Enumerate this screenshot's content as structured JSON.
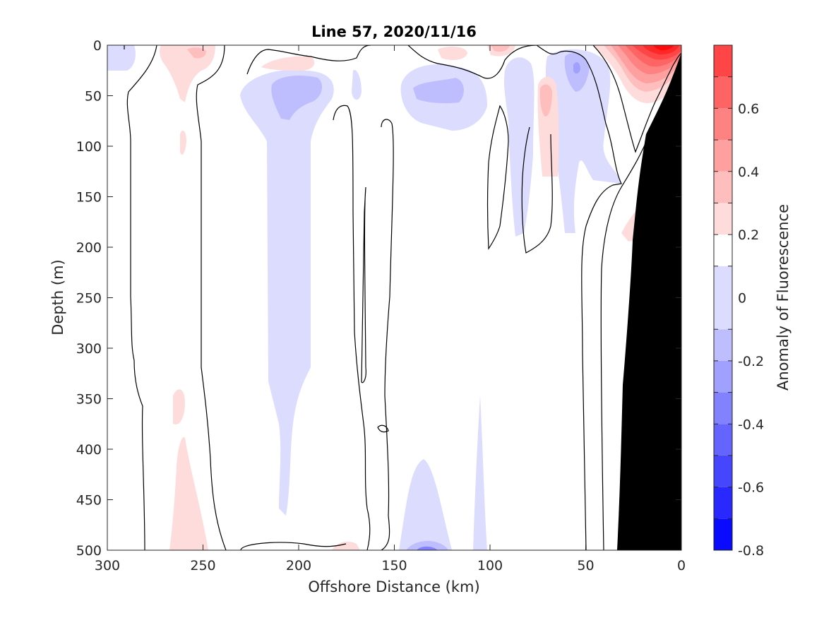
{
  "chart_data": {
    "type": "heatmap",
    "title": "Line 57, 2020/11/16",
    "xlabel": "Offshore Distance (km)",
    "ylabel": "Depth (m)",
    "xlim": [
      300,
      0
    ],
    "ylim": [
      0,
      500
    ],
    "x_reversed": true,
    "y_reversed": true,
    "xticks": [
      300,
      250,
      200,
      150,
      100,
      50,
      0
    ],
    "yticks": [
      0,
      50,
      100,
      150,
      200,
      250,
      300,
      350,
      400,
      450,
      500
    ],
    "colorbar": {
      "label": "Anomaly of Fluorescence",
      "range": [
        -0.8,
        0.8
      ],
      "ticks": [
        0.6,
        0.4,
        0.2,
        0,
        -0.2,
        -0.4,
        -0.6,
        -0.8
      ],
      "levels": [
        -0.8,
        -0.7,
        -0.6,
        -0.5,
        -0.4,
        -0.3,
        -0.2,
        -0.1,
        0.1,
        0.2,
        0.3,
        0.4,
        0.5,
        0.6,
        0.7,
        0.8
      ],
      "colors": [
        "#0a0aff",
        "#2828ff",
        "#4646ff",
        "#6464ff",
        "#8282ff",
        "#a0a0ff",
        "#bebeff",
        "#dcdcff",
        "#ffffff",
        "#ffdcdc",
        "#ffbebe",
        "#ffa0a0",
        "#ff8282",
        "#ff6464",
        "#ff4646",
        "#ff2828",
        "#ff0a0a"
      ]
    },
    "features": [
      {
        "name": "high anomaly near coast",
        "x_range": [
          0,
          35
        ],
        "depth_range": [
          0,
          60
        ],
        "max_value": 0.8
      },
      {
        "name": "negative anomaly column",
        "x_range": [
          185,
          225
        ],
        "depth_range": [
          40,
          460
        ],
        "min_value": -0.3
      },
      {
        "name": "negative anomaly near bottom",
        "x_range": [
          100,
          150
        ],
        "depth_range": [
          400,
          500
        ],
        "min_value": -0.5
      },
      {
        "name": "seafloor (no data)",
        "x_range": [
          0,
          35
        ],
        "depth_range": [
          40,
          500
        ]
      }
    ],
    "grid": false,
    "legend": "none"
  }
}
